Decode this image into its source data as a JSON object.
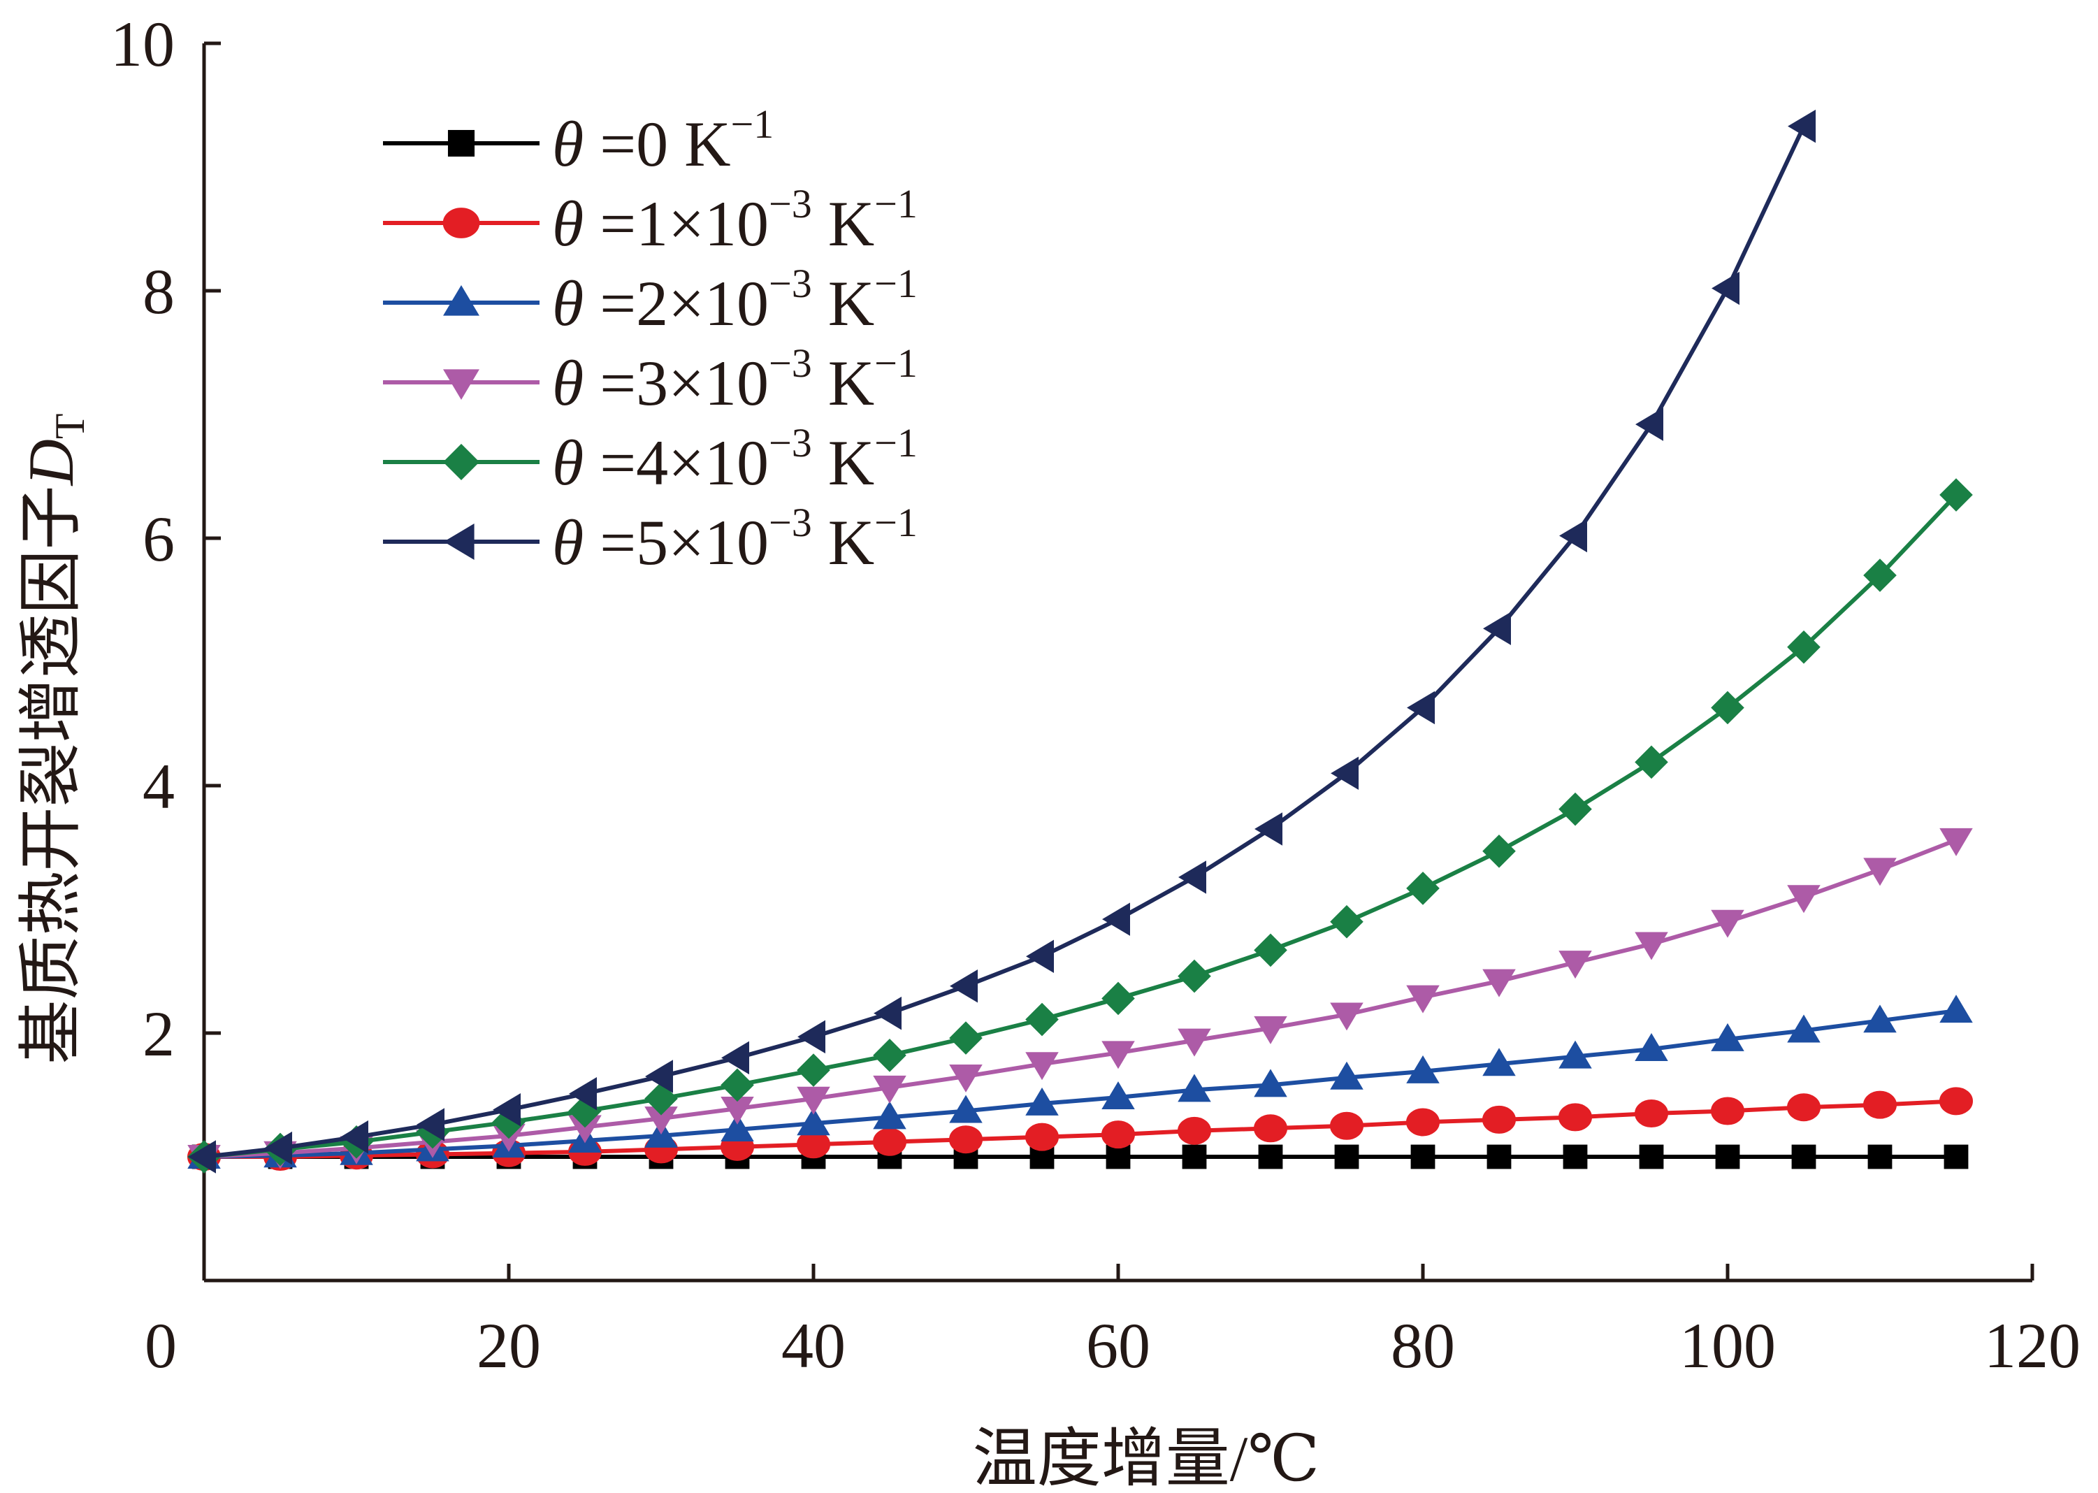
{
  "chart_data": {
    "type": "line",
    "xlabel": "温度增量/℃",
    "ylabel_main": "基质热开裂增透因子",
    "ylabel_symbol": "D",
    "ylabel_subscript": "T",
    "xlim": [
      0,
      120
    ],
    "ylim": [
      0,
      10
    ],
    "x_ticks": [
      "0",
      "20",
      "40",
      "60",
      "80",
      "100",
      "120"
    ],
    "y_ticks": [
      "2",
      "4",
      "6",
      "8",
      "10"
    ],
    "grid": false,
    "legend_position": "top-left",
    "series": [
      {
        "legend": {
          "symbol": "θ",
          "eq": " =0 K",
          "sup": "−1",
          "tail": ""
        },
        "color": "#000000",
        "marker": "square",
        "x": [
          0,
          5,
          10,
          15,
          20,
          25,
          30,
          35,
          40,
          45,
          50,
          55,
          60,
          65,
          70,
          75,
          80,
          85,
          90,
          95,
          100,
          105,
          110,
          115
        ],
        "y": [
          1.0,
          1.0,
          1.0,
          1.0,
          1.0,
          1.0,
          1.0,
          1.0,
          1.0,
          1.0,
          1.0,
          1.0,
          1.0,
          1.0,
          1.0,
          1.0,
          1.0,
          1.0,
          1.0,
          1.0,
          1.0,
          1.0,
          1.0,
          1.0
        ]
      },
      {
        "legend": {
          "symbol": "θ",
          "eq": " =1×10",
          "sup": "−3",
          "tail": " K",
          "sup2": "−1"
        },
        "color": "#e31e24",
        "marker": "circle",
        "x": [
          0,
          5,
          10,
          15,
          20,
          25,
          30,
          35,
          40,
          45,
          50,
          55,
          60,
          65,
          70,
          75,
          80,
          85,
          90,
          95,
          100,
          105,
          110,
          115
        ],
        "y": [
          1.0,
          1.0,
          1.01,
          1.02,
          1.03,
          1.04,
          1.06,
          1.08,
          1.1,
          1.12,
          1.14,
          1.16,
          1.18,
          1.21,
          1.23,
          1.25,
          1.28,
          1.3,
          1.32,
          1.35,
          1.37,
          1.4,
          1.42,
          1.45
        ]
      },
      {
        "legend": {
          "symbol": "θ",
          "eq": " =2×10",
          "sup": "−3",
          "tail": " K",
          "sup2": "−1"
        },
        "color": "#1d4ea1",
        "marker": "triangle-up",
        "x": [
          0,
          5,
          10,
          15,
          20,
          25,
          30,
          35,
          40,
          45,
          50,
          55,
          60,
          65,
          70,
          75,
          80,
          85,
          90,
          95,
          100,
          105,
          110,
          115
        ],
        "y": [
          1.0,
          1.01,
          1.03,
          1.06,
          1.09,
          1.13,
          1.17,
          1.22,
          1.27,
          1.32,
          1.37,
          1.43,
          1.48,
          1.54,
          1.58,
          1.64,
          1.69,
          1.75,
          1.81,
          1.87,
          1.95,
          2.02,
          2.1,
          2.18
        ]
      },
      {
        "legend": {
          "symbol": "θ",
          "eq": " =3×10",
          "sup": "−3",
          "tail": " K",
          "sup2": "−1"
        },
        "color": "#ad5ba7",
        "marker": "triangle-down",
        "x": [
          0,
          5,
          10,
          15,
          20,
          25,
          30,
          35,
          40,
          45,
          50,
          55,
          60,
          65,
          70,
          75,
          80,
          85,
          90,
          95,
          100,
          105,
          110,
          115
        ],
        "y": [
          1.0,
          1.03,
          1.07,
          1.12,
          1.17,
          1.24,
          1.31,
          1.39,
          1.47,
          1.56,
          1.65,
          1.75,
          1.84,
          1.94,
          2.04,
          2.15,
          2.29,
          2.42,
          2.57,
          2.72,
          2.9,
          3.1,
          3.32,
          3.56
        ]
      },
      {
        "legend": {
          "symbol": "θ",
          "eq": " =4×10",
          "sup": "−3",
          "tail": " K",
          "sup2": "−1"
        },
        "color": "#1a8045",
        "marker": "diamond",
        "x": [
          0,
          5,
          10,
          15,
          20,
          25,
          30,
          35,
          40,
          45,
          50,
          55,
          60,
          65,
          70,
          75,
          80,
          85,
          90,
          95,
          100,
          105,
          110,
          115
        ],
        "y": [
          1.0,
          1.06,
          1.12,
          1.2,
          1.28,
          1.37,
          1.47,
          1.58,
          1.7,
          1.82,
          1.96,
          2.11,
          2.28,
          2.46,
          2.67,
          2.9,
          3.17,
          3.47,
          3.81,
          4.19,
          4.63,
          5.12,
          5.7,
          6.35
        ]
      },
      {
        "legend": {
          "symbol": "θ",
          "eq": " =5×10",
          "sup": "−3",
          "tail": " K",
          "sup2": "−1"
        },
        "color": "#1e2a5a",
        "marker": "triangle-left",
        "x": [
          0,
          5,
          10,
          15,
          20,
          25,
          30,
          35,
          40,
          45,
          50,
          55,
          60,
          65,
          70,
          75,
          80,
          85,
          90,
          95,
          100,
          105
        ],
        "y": [
          1.0,
          1.07,
          1.16,
          1.26,
          1.38,
          1.51,
          1.65,
          1.8,
          1.97,
          2.16,
          2.38,
          2.62,
          2.92,
          3.26,
          3.65,
          4.1,
          4.63,
          5.27,
          6.02,
          6.92,
          8.02,
          9.33
        ]
      }
    ]
  }
}
